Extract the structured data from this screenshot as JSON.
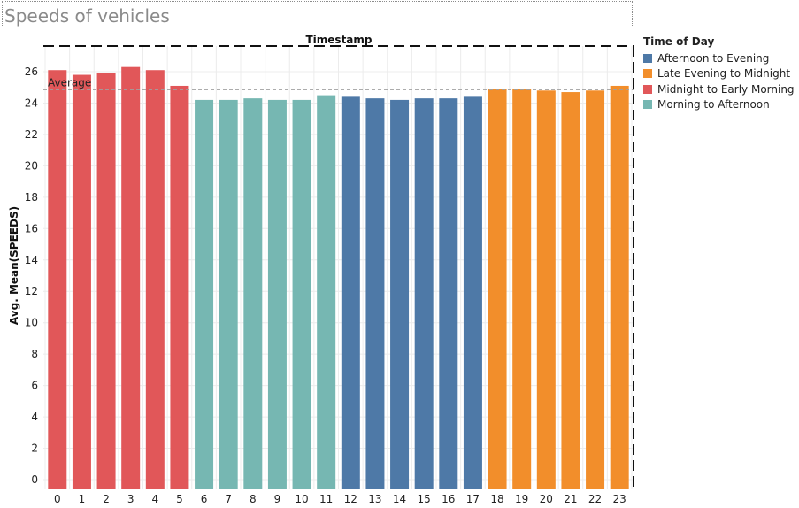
{
  "title": "Speeds of vehicles",
  "legend": {
    "title": "Time of Day",
    "items": [
      {
        "label": "Afternoon to Evening",
        "color": "#4e79a7"
      },
      {
        "label": "Late Evening to Midnight",
        "color": "#f28e2b"
      },
      {
        "label": "Midnight to Early Morning",
        "color": "#e15759"
      },
      {
        "label": "Morning to Afternoon",
        "color": "#76b7b2"
      }
    ]
  },
  "chart_data": {
    "type": "bar",
    "title": "",
    "xlabel": "Timestamp",
    "ylabel": "Avg. Mean(SPEEDS)",
    "categories": [
      "0",
      "1",
      "2",
      "3",
      "4",
      "5",
      "6",
      "7",
      "8",
      "9",
      "10",
      "11",
      "12",
      "13",
      "14",
      "15",
      "16",
      "17",
      "18",
      "19",
      "20",
      "21",
      "22",
      "23"
    ],
    "values": [
      26.1,
      25.8,
      25.9,
      26.3,
      26.1,
      25.1,
      24.2,
      24.2,
      24.3,
      24.2,
      24.2,
      24.5,
      24.4,
      24.3,
      24.2,
      24.3,
      24.3,
      24.4,
      24.9,
      24.9,
      24.8,
      24.7,
      24.8,
      25.1
    ],
    "groups": [
      "Midnight to Early Morning",
      "Midnight to Early Morning",
      "Midnight to Early Morning",
      "Midnight to Early Morning",
      "Midnight to Early Morning",
      "Midnight to Early Morning",
      "Morning to Afternoon",
      "Morning to Afternoon",
      "Morning to Afternoon",
      "Morning to Afternoon",
      "Morning to Afternoon",
      "Morning to Afternoon",
      "Afternoon to Evening",
      "Afternoon to Evening",
      "Afternoon to Evening",
      "Afternoon to Evening",
      "Afternoon to Evening",
      "Afternoon to Evening",
      "Late Evening to Midnight",
      "Late Evening to Midnight",
      "Late Evening to Midnight",
      "Late Evening to Midnight",
      "Late Evening to Midnight",
      "Late Evening to Midnight"
    ],
    "group_colors": {
      "Afternoon to Evening": "#4e79a7",
      "Late Evening to Midnight": "#f28e2b",
      "Midnight to Early Morning": "#e15759",
      "Morning to Afternoon": "#76b7b2"
    },
    "yticks": [
      0,
      2,
      4,
      6,
      8,
      10,
      12,
      14,
      16,
      18,
      20,
      22,
      24,
      26
    ],
    "ylim": [
      0,
      27.3
    ],
    "reference_line": {
      "label": "Average",
      "value": 24.85
    },
    "grid": true,
    "legend_position": "right"
  }
}
